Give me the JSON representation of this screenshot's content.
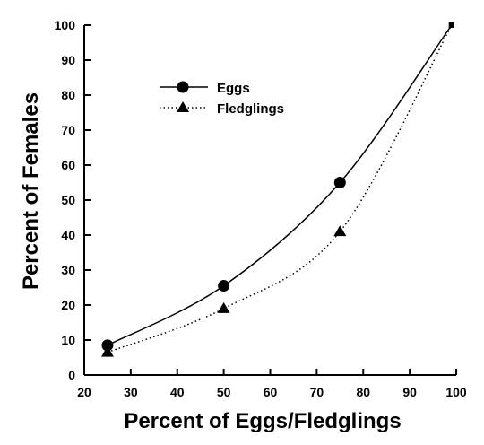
{
  "chart_data": {
    "type": "line",
    "title": "",
    "xlabel": "Percent of Eggs/Fledglings",
    "ylabel": "Percent of Females",
    "xlim": [
      20,
      100
    ],
    "ylim": [
      0,
      100
    ],
    "xticks": [
      20,
      30,
      40,
      50,
      60,
      70,
      80,
      90,
      100
    ],
    "yticks": [
      0,
      10,
      20,
      30,
      40,
      50,
      60,
      70,
      80,
      90,
      100
    ],
    "grid": false,
    "legend_position": "top-left",
    "series": [
      {
        "name": "Eggs",
        "marker": "circle",
        "line_style": "solid",
        "points": [
          {
            "x": 25,
            "y": 8.5
          },
          {
            "x": 50,
            "y": 25.5
          },
          {
            "x": 75,
            "y": 55
          },
          {
            "x": 99,
            "y": 100
          }
        ]
      },
      {
        "name": "Fledglings",
        "marker": "triangle",
        "line_style": "dotted",
        "points": [
          {
            "x": 25,
            "y": 6.5
          },
          {
            "x": 50,
            "y": 19
          },
          {
            "x": 75,
            "y": 41
          },
          {
            "x": 99,
            "y": 100
          }
        ]
      }
    ]
  }
}
